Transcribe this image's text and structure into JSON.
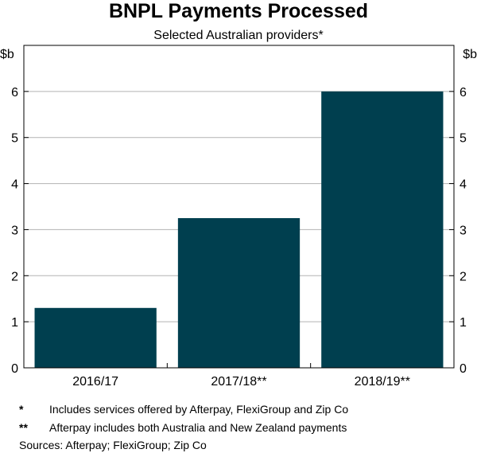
{
  "chart_data": {
    "type": "bar",
    "title": "BNPL Payments Processed",
    "subtitle": "Selected Australian providers*",
    "unit_left": "$b",
    "unit_right": "$b",
    "categories": [
      "2016/17",
      "2017/18**",
      "2018/19**"
    ],
    "values": [
      1.3,
      3.25,
      6.0
    ],
    "ylim": [
      0,
      7
    ],
    "yticks": [
      0,
      1,
      2,
      3,
      4,
      5,
      6
    ],
    "grid": true,
    "bar_color": "#003f4f",
    "grid_color": "#b3b3b3"
  },
  "footnotes": [
    {
      "marker": "*",
      "text": "Includes services offered by Afterpay, FlexiGroup and Zip Co"
    },
    {
      "marker": "**",
      "text": "Afterpay includes both Australia and New Zealand payments"
    }
  ],
  "sources": "Sources: Afterpay; FlexiGroup; Zip Co"
}
